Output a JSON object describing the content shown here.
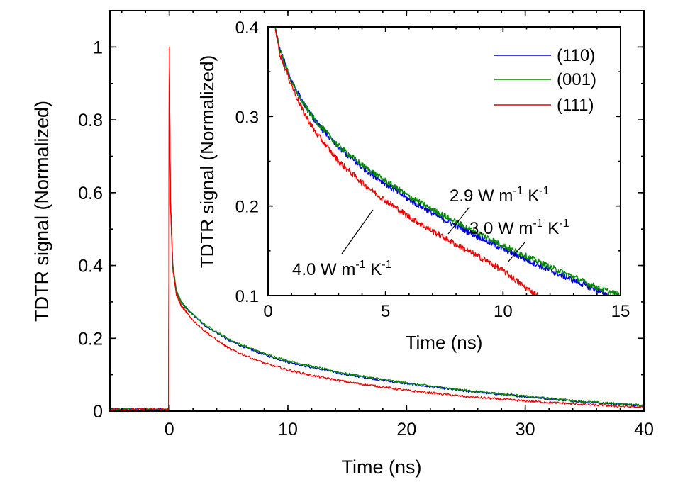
{
  "chart_data": [
    {
      "type": "line",
      "panel": "main",
      "xlabel": "Time (ns)",
      "ylabel": "TDTR signal (Normalized)",
      "xlim": [
        -5,
        40
      ],
      "ylim": [
        0,
        1.1
      ],
      "grid": false,
      "x_ticks": [
        "0",
        "10",
        "20",
        "30",
        "40"
      ],
      "y_ticks": [
        "0",
        "0.2",
        "0.4",
        "0.6",
        "0.8",
        "1"
      ],
      "x_tick_values": [
        0,
        10,
        20,
        30,
        40
      ],
      "y_tick_values": [
        0,
        0.2,
        0.4,
        0.6,
        0.8,
        1
      ],
      "series": [
        {
          "name": "(110)",
          "color": "#0000dd",
          "x": [
            -5,
            -0.05,
            0,
            0.1,
            0.3,
            0.6,
            1,
            1.5,
            2,
            3,
            4,
            5,
            6,
            8,
            10,
            12,
            15,
            20,
            25,
            30,
            35,
            40
          ],
          "y": [
            0.005,
            0.005,
            1.0,
            0.58,
            0.4,
            0.33,
            0.3,
            0.28,
            0.265,
            0.235,
            0.215,
            0.195,
            0.18,
            0.155,
            0.135,
            0.12,
            0.1,
            0.075,
            0.055,
            0.04,
            0.025,
            0.015
          ]
        },
        {
          "name": "(001)",
          "color": "#008800",
          "x": [
            -5,
            -0.05,
            0,
            0.1,
            0.3,
            0.6,
            1,
            1.5,
            2,
            3,
            4,
            5,
            6,
            8,
            10,
            12,
            15,
            20,
            25,
            30,
            35,
            40
          ],
          "y": [
            0.005,
            0.005,
            1.0,
            0.58,
            0.4,
            0.33,
            0.3,
            0.28,
            0.265,
            0.237,
            0.217,
            0.198,
            0.183,
            0.158,
            0.138,
            0.123,
            0.102,
            0.077,
            0.057,
            0.041,
            0.026,
            0.016
          ]
        },
        {
          "name": "(111)",
          "color": "#ee0000",
          "x": [
            -5,
            -0.05,
            0,
            0.1,
            0.3,
            0.6,
            1,
            1.5,
            2,
            3,
            4,
            5,
            6,
            8,
            10,
            12,
            15,
            20,
            25,
            30,
            35,
            40
          ],
          "y": [
            0.005,
            0.005,
            1.0,
            0.57,
            0.39,
            0.32,
            0.29,
            0.27,
            0.25,
            0.22,
            0.195,
            0.173,
            0.158,
            0.132,
            0.113,
            0.098,
            0.08,
            0.057,
            0.04,
            0.028,
            0.018,
            0.01
          ]
        }
      ]
    },
    {
      "type": "line",
      "panel": "inset",
      "xlabel": "Time (ns)",
      "ylabel": "TDTR signal (Normalized)",
      "xlim": [
        0,
        15
      ],
      "ylim": [
        0.1,
        0.4
      ],
      "grid": false,
      "legend": "top-right",
      "x_ticks": [
        "0",
        "5",
        "10",
        "15"
      ],
      "y_ticks": [
        "0.1",
        "0.2",
        "0.3",
        "0.4"
      ],
      "x_tick_values": [
        0,
        5,
        10,
        15
      ],
      "y_tick_values": [
        0.1,
        0.2,
        0.3,
        0.4
      ],
      "series": [
        {
          "name": "(110)",
          "color": "#0000dd",
          "x": [
            0.3,
            0.5,
            1,
            1.5,
            2,
            3,
            4,
            5,
            6,
            7,
            8,
            9,
            10,
            11,
            12,
            13,
            14,
            14.5
          ],
          "y": [
            0.4,
            0.375,
            0.34,
            0.315,
            0.295,
            0.265,
            0.243,
            0.225,
            0.207,
            0.192,
            0.178,
            0.165,
            0.152,
            0.14,
            0.128,
            0.117,
            0.106,
            0.1
          ]
        },
        {
          "name": "(001)",
          "color": "#008800",
          "x": [
            0.3,
            0.5,
            1,
            1.5,
            2,
            3,
            4,
            5,
            6,
            7,
            8,
            9,
            10,
            11,
            12,
            13,
            14,
            15
          ],
          "y": [
            0.4,
            0.375,
            0.338,
            0.314,
            0.296,
            0.267,
            0.246,
            0.228,
            0.211,
            0.196,
            0.182,
            0.169,
            0.156,
            0.144,
            0.132,
            0.121,
            0.109,
            0.1
          ]
        },
        {
          "name": "(111)",
          "color": "#ee0000",
          "x": [
            0.3,
            0.5,
            1,
            1.5,
            2,
            3,
            4,
            5,
            6,
            7,
            8,
            9,
            10,
            10.5,
            11,
            11.5
          ],
          "y": [
            0.4,
            0.37,
            0.335,
            0.305,
            0.283,
            0.25,
            0.226,
            0.206,
            0.188,
            0.172,
            0.157,
            0.143,
            0.128,
            0.118,
            0.108,
            0.1
          ]
        }
      ],
      "annotations": [
        {
          "base": "2.9 W m",
          "exp1": "-1",
          "mid": " K",
          "exp2": "-1"
        },
        {
          "base": "3.0 W m",
          "exp1": "-1",
          "mid": " K",
          "exp2": "-1"
        },
        {
          "base": "4.0 W m",
          "exp1": "-1",
          "mid": " K",
          "exp2": "-1"
        }
      ]
    }
  ]
}
